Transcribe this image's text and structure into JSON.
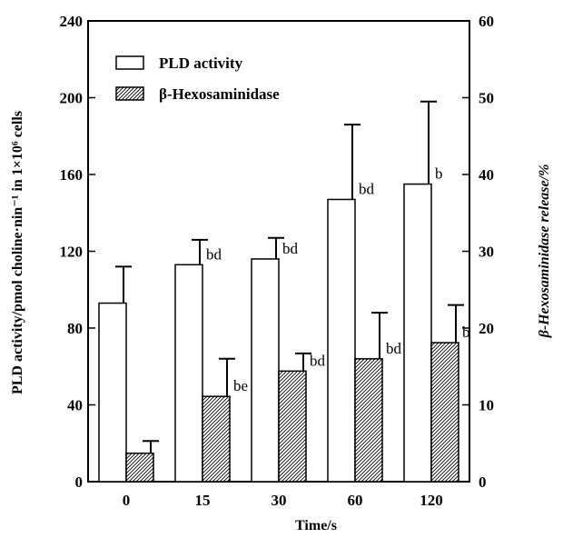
{
  "chart_data": {
    "type": "bar",
    "categories": [
      "0",
      "15",
      "30",
      "60",
      "120"
    ],
    "xlabel": "Time/s",
    "ylabel": "PLD activity/pmol choline·nin⁻¹ in 1×10⁶ cells",
    "ylabel_right": "β-Hexosaminidase release/%",
    "ylim": [
      0,
      240
    ],
    "y_ticks": [
      0,
      40,
      80,
      120,
      160,
      200,
      240
    ],
    "ylim_right": [
      0,
      60
    ],
    "y_ticks_right": [
      0,
      10,
      20,
      30,
      40,
      50,
      60
    ],
    "grid": false,
    "legend_position": "top-left",
    "series": [
      {
        "name": "PLD activity",
        "axis": "left",
        "fill": "#ffffff",
        "pattern": "none",
        "values": [
          93,
          113,
          116,
          147,
          155
        ],
        "errors": [
          19,
          13,
          11,
          39,
          43
        ],
        "labels": [
          "",
          "bd",
          "bd",
          "bd",
          "b"
        ]
      },
      {
        "name": "β-Hexosaminidase",
        "axis": "right",
        "fill": "#ffffff",
        "pattern": "diagonal-hatch",
        "values": [
          3.7,
          11.1,
          14.4,
          16.0,
          18.1
        ],
        "errors": [
          1.6,
          4.9,
          2.3,
          6.0,
          4.9
        ],
        "labels": [
          "",
          "be",
          "bd",
          "bd",
          "b"
        ]
      }
    ]
  }
}
